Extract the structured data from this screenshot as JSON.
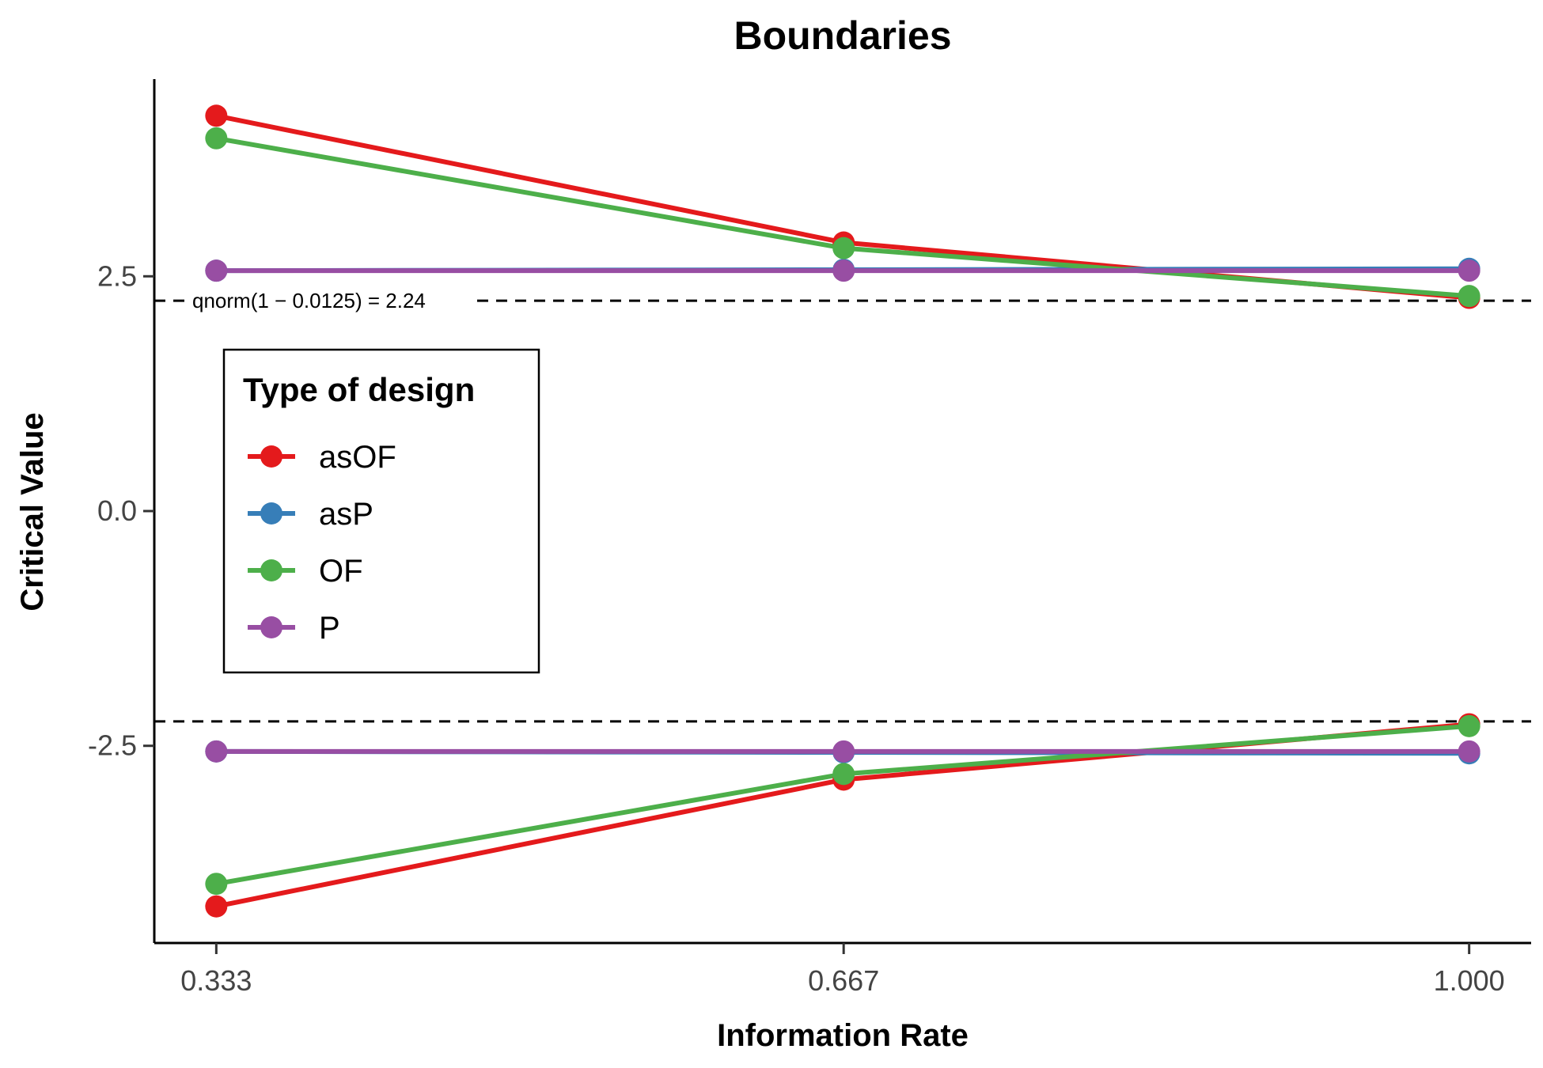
{
  "chart_data": {
    "type": "line",
    "title": "Boundaries",
    "xlabel": "Information Rate",
    "ylabel": "Critical Value",
    "x": [
      0.333,
      0.667,
      1.0
    ],
    "x_tick_labels": [
      "0.333",
      "0.667",
      "1.000"
    ],
    "y_ticks": [
      -2.5,
      0.0,
      2.5
    ],
    "y_tick_labels": [
      "-2.5",
      "0.0",
      "2.5"
    ],
    "xlim": [
      0.3,
      1.033
    ],
    "ylim": [
      -4.6,
      4.6
    ],
    "grid": false,
    "legend": {
      "title": "Type of design",
      "placement": "left",
      "entries": [
        "asOF",
        "asP",
        "OF",
        "P"
      ]
    },
    "reference_lines": [
      {
        "y": 2.24,
        "style": "dashed",
        "label": "qnorm(1 − 0.0125) = 2.24"
      },
      {
        "y": -2.24,
        "style": "dashed"
      }
    ],
    "series": [
      {
        "name": "asOF",
        "color": "#E41A1C",
        "upper": [
          4.21,
          2.86,
          2.27
        ],
        "lower": [
          -4.21,
          -2.86,
          -2.27
        ]
      },
      {
        "name": "asP",
        "color": "#377EB8",
        "upper": [
          2.56,
          2.57,
          2.58
        ],
        "lower": [
          -2.56,
          -2.57,
          -2.58
        ]
      },
      {
        "name": "OF",
        "color": "#4DAF4A",
        "upper": [
          3.97,
          2.8,
          2.29
        ],
        "lower": [
          -3.97,
          -2.8,
          -2.29
        ]
      },
      {
        "name": "P",
        "color": "#984EA3",
        "upper": [
          2.56,
          2.56,
          2.56
        ],
        "lower": [
          -2.56,
          -2.56,
          -2.56
        ]
      }
    ]
  }
}
